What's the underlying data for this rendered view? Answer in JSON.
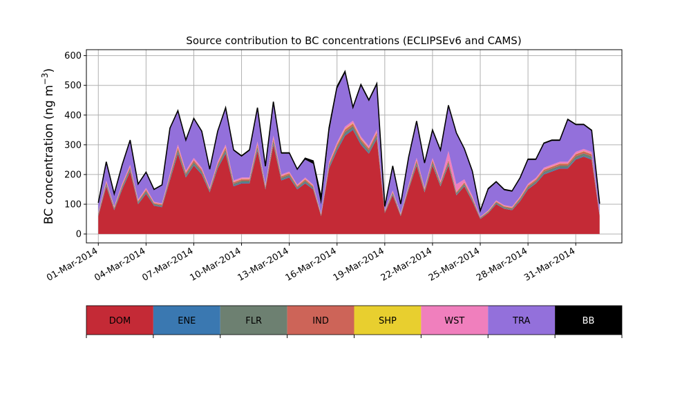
{
  "chart_data": {
    "type": "area",
    "stacked": true,
    "title": "Source contribution to BC concentrations (ECLIPSEv6 and CAMS)",
    "ylabel": "BC concentration (ng m",
    "ylabel_sup": "−3",
    "ylabel_close": ")",
    "xlabel": "",
    "ylim": [
      -30,
      620
    ],
    "xlim_days": [
      -0.75,
      32.9
    ],
    "yticks": [
      0,
      100,
      200,
      300,
      400,
      500,
      600
    ],
    "ytick_labels": [
      "0",
      "100",
      "200",
      "300",
      "400",
      "500",
      "600"
    ],
    "xtick_labels": [
      "01-Mar-2014",
      "04-Mar-2014",
      "07-Mar-2014",
      "10-Mar-2014",
      "13-Mar-2014",
      "16-Mar-2014",
      "19-Mar-2014",
      "22-Mar-2014",
      "25-Mar-2014",
      "28-Mar-2014",
      "31-Mar-2014"
    ],
    "grid": true,
    "total_line_color": "#000000",
    "x_dates": [
      "01-Mar 00:00",
      "01-Mar 12:00",
      "02-Mar 00:00",
      "02-Mar 12:00",
      "03-Mar 00:00",
      "03-Mar 12:00",
      "04-Mar 00:00",
      "04-Mar 12:00",
      "05-Mar 00:00",
      "05-Mar 12:00",
      "06-Mar 00:00",
      "06-Mar 12:00",
      "07-Mar 00:00",
      "07-Mar 12:00",
      "08-Mar 00:00",
      "08-Mar 12:00",
      "09-Mar 00:00",
      "09-Mar 12:00",
      "10-Mar 00:00",
      "10-Mar 12:00",
      "11-Mar 00:00",
      "11-Mar 12:00",
      "12-Mar 00:00",
      "12-Mar 12:00",
      "13-Mar 00:00",
      "13-Mar 12:00",
      "14-Mar 00:00",
      "14-Mar 12:00",
      "15-Mar 00:00",
      "15-Mar 12:00",
      "16-Mar 00:00",
      "16-Mar 12:00",
      "17-Mar 00:00",
      "17-Mar 12:00",
      "18-Mar 00:00",
      "18-Mar 12:00",
      "19-Mar 00:00",
      "19-Mar 12:00",
      "20-Mar 00:00",
      "20-Mar 12:00",
      "21-Mar 00:00",
      "21-Mar 12:00",
      "22-Mar 00:00",
      "22-Mar 12:00",
      "23-Mar 00:00",
      "23-Mar 12:00",
      "24-Mar 00:00",
      "24-Mar 12:00",
      "25-Mar 00:00",
      "25-Mar 12:00",
      "26-Mar 00:00",
      "26-Mar 12:00",
      "27-Mar 00:00",
      "27-Mar 12:00",
      "28-Mar 00:00",
      "28-Mar 12:00",
      "29-Mar 00:00",
      "29-Mar 12:00",
      "30-Mar 00:00",
      "30-Mar 12:00",
      "31-Mar 00:00",
      "31-Mar 12:00",
      "01-Apr 00:00",
      "01-Apr 12:00"
    ],
    "series": [
      {
        "name": "DOM",
        "color": "#c42a36",
        "values": [
          60,
          160,
          80,
          150,
          210,
          100,
          135,
          95,
          90,
          180,
          270,
          190,
          230,
          200,
          140,
          220,
          270,
          160,
          170,
          170,
          280,
          150,
          300,
          180,
          190,
          150,
          170,
          150,
          60,
          220,
          280,
          330,
          350,
          300,
          270,
          320,
          70,
          130,
          60,
          150,
          230,
          140,
          230,
          160,
          230,
          130,
          160,
          110,
          50,
          70,
          100,
          85,
          80,
          110,
          150,
          170,
          200,
          210,
          220,
          220,
          250,
          260,
          250,
          60
        ]
      },
      {
        "name": "ENE",
        "color": "#3a78b1",
        "values": [
          2,
          3,
          2,
          3,
          3,
          2,
          3,
          2,
          2,
          3,
          4,
          3,
          3,
          3,
          2,
          3,
          4,
          3,
          3,
          3,
          4,
          2,
          4,
          3,
          3,
          2,
          3,
          2,
          1,
          3,
          4,
          4,
          4,
          4,
          3,
          4,
          1,
          2,
          1,
          2,
          3,
          2,
          3,
          2,
          3,
          2,
          2,
          2,
          1,
          1,
          2,
          1,
          1,
          2,
          2,
          2,
          3,
          3,
          3,
          3,
          3,
          3,
          3,
          1
        ]
      },
      {
        "name": "FLR",
        "color": "#6d8071",
        "values": [
          4,
          6,
          4,
          6,
          7,
          5,
          6,
          4,
          4,
          7,
          9,
          7,
          8,
          7,
          5,
          7,
          9,
          6,
          6,
          6,
          9,
          5,
          9,
          6,
          6,
          5,
          6,
          5,
          3,
          7,
          8,
          9,
          9,
          8,
          8,
          9,
          3,
          5,
          3,
          5,
          8,
          5,
          8,
          6,
          8,
          5,
          6,
          5,
          3,
          3,
          4,
          4,
          4,
          5,
          6,
          6,
          7,
          7,
          7,
          7,
          8,
          8,
          8,
          3
        ]
      },
      {
        "name": "IND",
        "color": "#cd6458",
        "values": [
          3,
          5,
          3,
          5,
          6,
          4,
          5,
          3,
          3,
          6,
          8,
          6,
          7,
          6,
          4,
          6,
          8,
          5,
          5,
          5,
          8,
          4,
          8,
          5,
          5,
          4,
          5,
          4,
          2,
          6,
          7,
          8,
          8,
          7,
          7,
          8,
          2,
          4,
          2,
          4,
          7,
          4,
          7,
          5,
          7,
          4,
          5,
          4,
          2,
          2,
          3,
          3,
          3,
          4,
          5,
          5,
          6,
          6,
          6,
          6,
          7,
          7,
          7,
          2
        ]
      },
      {
        "name": "SHP",
        "color": "#e8cf2f",
        "values": [
          1,
          1,
          1,
          1,
          1,
          1,
          1,
          1,
          1,
          1,
          2,
          1,
          1,
          1,
          1,
          1,
          2,
          1,
          1,
          1,
          2,
          1,
          2,
          1,
          1,
          1,
          1,
          1,
          1,
          1,
          2,
          2,
          2,
          2,
          1,
          2,
          1,
          1,
          1,
          1,
          1,
          1,
          1,
          1,
          1,
          1,
          1,
          1,
          0,
          1,
          1,
          1,
          1,
          1,
          1,
          1,
          1,
          1,
          1,
          1,
          1,
          1,
          1,
          1
        ]
      },
      {
        "name": "WST",
        "color": "#f07fbd",
        "values": [
          3,
          5,
          3,
          5,
          6,
          4,
          5,
          3,
          3,
          6,
          8,
          6,
          7,
          6,
          4,
          6,
          8,
          5,
          5,
          5,
          8,
          4,
          8,
          5,
          5,
          4,
          5,
          4,
          2,
          6,
          7,
          8,
          8,
          7,
          7,
          8,
          2,
          4,
          2,
          4,
          7,
          4,
          7,
          5,
          30,
          25,
          10,
          7,
          2,
          2,
          3,
          3,
          3,
          4,
          5,
          5,
          6,
          6,
          6,
          6,
          7,
          7,
          7,
          2
        ]
      },
      {
        "name": "TRA",
        "color": "#9370db",
        "values": [
          30,
          60,
          40,
          60,
          80,
          50,
          50,
          40,
          60,
          150,
          110,
          100,
          130,
          120,
          60,
          100,
          120,
          100,
          70,
          90,
          110,
          60,
          110,
          70,
          60,
          50,
          60,
          70,
          30,
          100,
          180,
          180,
          40,
          170,
          150,
          150,
          10,
          80,
          30,
          90,
          120,
          80,
          90,
          100,
          150,
          170,
          100,
          80,
          15,
          70,
          60,
          50,
          50,
          60,
          80,
          60,
          80,
          80,
          70,
          140,
          90,
          80,
          70,
          30
        ]
      },
      {
        "name": "BB",
        "color": "#000000",
        "values": [
          2,
          3,
          2,
          3,
          3,
          2,
          3,
          2,
          2,
          3,
          4,
          3,
          3,
          3,
          2,
          3,
          4,
          3,
          3,
          3,
          4,
          2,
          4,
          3,
          3,
          2,
          5,
          10,
          25,
          15,
          8,
          6,
          5,
          5,
          5,
          5,
          4,
          3,
          2,
          3,
          4,
          3,
          4,
          3,
          4,
          3,
          3,
          3,
          5,
          4,
          3,
          3,
          3,
          3,
          3,
          3,
          3,
          3,
          3,
          3,
          3,
          3,
          3,
          3
        ]
      }
    ]
  },
  "legend": {
    "items": [
      {
        "label": "DOM",
        "color": "#c42a36",
        "text_color": "#000000"
      },
      {
        "label": "ENE",
        "color": "#3a78b1",
        "text_color": "#000000"
      },
      {
        "label": "FLR",
        "color": "#6d8071",
        "text_color": "#000000"
      },
      {
        "label": "IND",
        "color": "#cd6458",
        "text_color": "#000000"
      },
      {
        "label": "SHP",
        "color": "#e8cf2f",
        "text_color": "#000000"
      },
      {
        "label": "WST",
        "color": "#f07fbd",
        "text_color": "#000000"
      },
      {
        "label": "TRA",
        "color": "#9370db",
        "text_color": "#000000"
      },
      {
        "label": "BB",
        "color": "#000000",
        "text_color": "#ffffff"
      }
    ]
  }
}
